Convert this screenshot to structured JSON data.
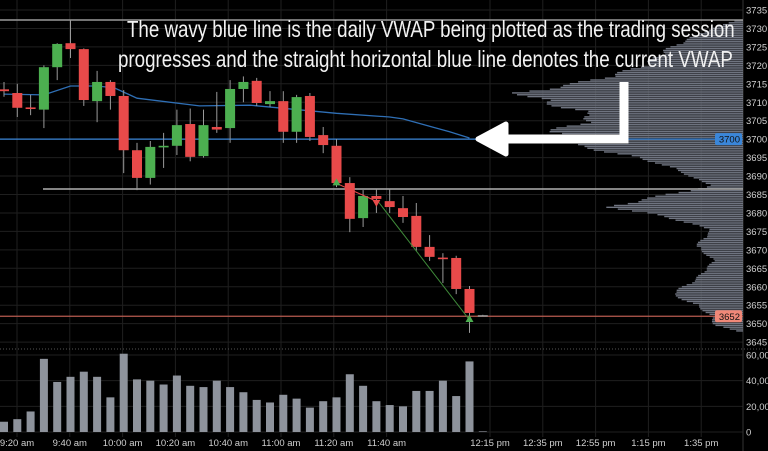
{
  "annotation": {
    "line1": "The wavy blue line is the daily VWAP being plotted as the trading session",
    "line2": "progresses and the straight horizontal blue line  denotes the current VWAP"
  },
  "colors": {
    "background": "#000000",
    "up": "#4caf50",
    "down": "#e84a4a",
    "vwap": "#2f6fb5",
    "vwap_tag": "#3a86d9",
    "last_price": "#f08878",
    "volume": "#8e939c",
    "profile": "#6f7480",
    "grid": "#1f1f1f",
    "axis_text": "#d0d0d0"
  },
  "chart_data": [
    {
      "type": "candlestick",
      "interval": "5 min",
      "ylim": [
        3643,
        3737
      ],
      "y_ticks": [
        "3735",
        "3730",
        "3725",
        "3720",
        "3715",
        "3710",
        "3705",
        "3700",
        "3695",
        "3690",
        "3685",
        "3680",
        "3675",
        "3670",
        "3665",
        "3660",
        "3655",
        "3650",
        "3645"
      ],
      "x_ticks": [
        "9:20 am",
        "9:40 am",
        "10:00 am",
        "10:20 am",
        "10:40 am",
        "11:00 am",
        "11:20 am",
        "11:40 am",
        "12:15 pm",
        "12:35 pm",
        "12:55 pm",
        "1:15 pm",
        "1:35 pm"
      ],
      "grid": true,
      "candles": [
        {
          "o": 3713.5,
          "h": 3715.5,
          "l": 3711.5,
          "c": 3713
        },
        {
          "o": 3712.5,
          "h": 3715,
          "l": 3706,
          "c": 3708.5
        },
        {
          "o": 3708.6,
          "h": 3712,
          "l": 3706.5,
          "c": 3708.2
        },
        {
          "o": 3708,
          "h": 3720,
          "l": 3703,
          "c": 3719.5
        },
        {
          "o": 3719.5,
          "h": 3726,
          "l": 3716,
          "c": 3725.8
        },
        {
          "o": 3726,
          "h": 3732.3,
          "l": 3722,
          "c": 3724.4
        },
        {
          "o": 3724.4,
          "h": 3724.6,
          "l": 3709,
          "c": 3710.6
        },
        {
          "o": 3710.3,
          "h": 3718.5,
          "l": 3704.6,
          "c": 3715.5
        },
        {
          "o": 3715.5,
          "h": 3716,
          "l": 3708,
          "c": 3711.7
        },
        {
          "o": 3711.7,
          "h": 3713.3,
          "l": 3690.8,
          "c": 3697
        },
        {
          "o": 3697,
          "h": 3699,
          "l": 3686.2,
          "c": 3689.5
        },
        {
          "o": 3689.5,
          "h": 3699.5,
          "l": 3687.7,
          "c": 3697.9
        },
        {
          "o": 3697.8,
          "h": 3701.7,
          "l": 3692.2,
          "c": 3698.2
        },
        {
          "o": 3698.2,
          "h": 3708,
          "l": 3695.7,
          "c": 3703.8
        },
        {
          "o": 3704.1,
          "h": 3708.3,
          "l": 3694,
          "c": 3695.2
        },
        {
          "o": 3695.4,
          "h": 3708,
          "l": 3695,
          "c": 3703.8
        },
        {
          "o": 3703.3,
          "h": 3712.8,
          "l": 3701.7,
          "c": 3702.6
        },
        {
          "o": 3703,
          "h": 3716,
          "l": 3699,
          "c": 3713.6
        },
        {
          "o": 3713.6,
          "h": 3717,
          "l": 3710,
          "c": 3715.5
        },
        {
          "o": 3715.8,
          "h": 3716.6,
          "l": 3709,
          "c": 3709.8
        },
        {
          "o": 3709.5,
          "h": 3713,
          "l": 3708.7,
          "c": 3710.3
        },
        {
          "o": 3710.3,
          "h": 3713,
          "l": 3699,
          "c": 3702
        },
        {
          "o": 3702,
          "h": 3712,
          "l": 3699,
          "c": 3711.4
        },
        {
          "o": 3711.7,
          "h": 3712.5,
          "l": 3699.5,
          "c": 3700.6
        },
        {
          "o": 3701.1,
          "h": 3703.3,
          "l": 3696.2,
          "c": 3698.4
        },
        {
          "o": 3698.2,
          "h": 3700,
          "l": 3687,
          "c": 3688.1
        },
        {
          "o": 3688.1,
          "h": 3689.7,
          "l": 3674.8,
          "c": 3678.4
        },
        {
          "o": 3678.6,
          "h": 3686.2,
          "l": 3676.2,
          "c": 3684.6
        },
        {
          "o": 3684.6,
          "h": 3686.5,
          "l": 3680,
          "c": 3683.8
        },
        {
          "o": 3683.2,
          "h": 3686.5,
          "l": 3680,
          "c": 3681.6
        },
        {
          "o": 3681.3,
          "h": 3684.6,
          "l": 3677.3,
          "c": 3678.9
        },
        {
          "o": 3679.2,
          "h": 3682.7,
          "l": 3669.7,
          "c": 3670.8
        },
        {
          "o": 3670.8,
          "h": 3674,
          "l": 3667,
          "c": 3668.1
        },
        {
          "o": 3667.9,
          "h": 3669.1,
          "l": 3661,
          "c": 3667.5
        },
        {
          "o": 3667.8,
          "h": 3668.4,
          "l": 3658,
          "c": 3659.4
        },
        {
          "o": 3659.4,
          "h": 3660.2,
          "l": 3647.5,
          "c": 3652.9
        },
        {
          "o": 3652.3,
          "h": 3652.4,
          "l": 3652.2,
          "c": 3652.3
        }
      ],
      "vwap_curve": [
        {
          "i": 0,
          "v": 3712.2
        },
        {
          "i": 3,
          "v": 3712
        },
        {
          "i": 5,
          "v": 3714.4
        },
        {
          "i": 7,
          "v": 3714.4
        },
        {
          "i": 8.3,
          "v": 3713.9
        },
        {
          "i": 10,
          "v": 3711.1
        },
        {
          "i": 14.7,
          "v": 3709
        },
        {
          "i": 18.5,
          "v": 3709.2
        },
        {
          "i": 25,
          "v": 3707
        },
        {
          "i": 29,
          "v": 3706
        },
        {
          "i": 30,
          "v": 3705.5
        },
        {
          "i": 33.5,
          "v": 3702
        },
        {
          "i": 35,
          "v": 3700.3
        }
      ],
      "current_vwap": 3700,
      "current_vwap_label": "3700",
      "last_price": 3652,
      "last_price_label": "3652",
      "reference_lines": [
        3732.3,
        3686.5
      ],
      "signals": [
        {
          "type": "buy",
          "i": 25,
          "price": 3688
        },
        {
          "type": "sell",
          "i": 28,
          "price": 3683
        },
        {
          "type": "buy",
          "i": 35,
          "price": 3651
        }
      ],
      "volume_profile": [
        {
          "p": 3732,
          "v": 0.04
        },
        {
          "p": 3729,
          "v": 0.18
        },
        {
          "p": 3724,
          "v": 0.35
        },
        {
          "p": 3720,
          "v": 0.44
        },
        {
          "p": 3717,
          "v": 0.6
        },
        {
          "p": 3715,
          "v": 0.75
        },
        {
          "p": 3712.5,
          "v": 1.0
        },
        {
          "p": 3710.6,
          "v": 0.91
        },
        {
          "p": 3708.5,
          "v": 0.8
        },
        {
          "p": 3706.5,
          "v": 0.67
        },
        {
          "p": 3704,
          "v": 0.74
        },
        {
          "p": 3702,
          "v": 0.87
        },
        {
          "p": 3698.4,
          "v": 0.77
        },
        {
          "p": 3695.7,
          "v": 0.53
        },
        {
          "p": 3693.5,
          "v": 0.38
        },
        {
          "p": 3691,
          "v": 0.27
        },
        {
          "p": 3689,
          "v": 0.21
        },
        {
          "p": 3687.3,
          "v": 0.13
        },
        {
          "p": 3685,
          "v": 0.34
        },
        {
          "p": 3681.6,
          "v": 0.6
        },
        {
          "p": 3679,
          "v": 0.35
        },
        {
          "p": 3675.4,
          "v": 0.14
        },
        {
          "p": 3671,
          "v": 0.21
        },
        {
          "p": 3667,
          "v": 0.13
        },
        {
          "p": 3662,
          "v": 0.21
        },
        {
          "p": 3658,
          "v": 0.32
        },
        {
          "p": 3655,
          "v": 0.21
        },
        {
          "p": 3652,
          "v": 0.14
        },
        {
          "p": 3649.6,
          "v": 0.13
        },
        {
          "p": 3648,
          "v": 0.03
        }
      ]
    },
    {
      "type": "bar",
      "ylim": [
        0,
        60000
      ],
      "y_ticks": [
        "60,00",
        "40,00",
        "20,00",
        "0"
      ],
      "values": [
        8000,
        10000,
        16000,
        57000,
        39000,
        43000,
        47000,
        43000,
        27000,
        61000,
        41000,
        40000,
        37000,
        44000,
        36000,
        35000,
        40000,
        35000,
        31000,
        25000,
        23000,
        29000,
        26000,
        19000,
        24000,
        27000,
        45000,
        36000,
        24000,
        21000,
        20000,
        32000,
        32000,
        40000,
        28000,
        55000,
        500
      ]
    }
  ]
}
